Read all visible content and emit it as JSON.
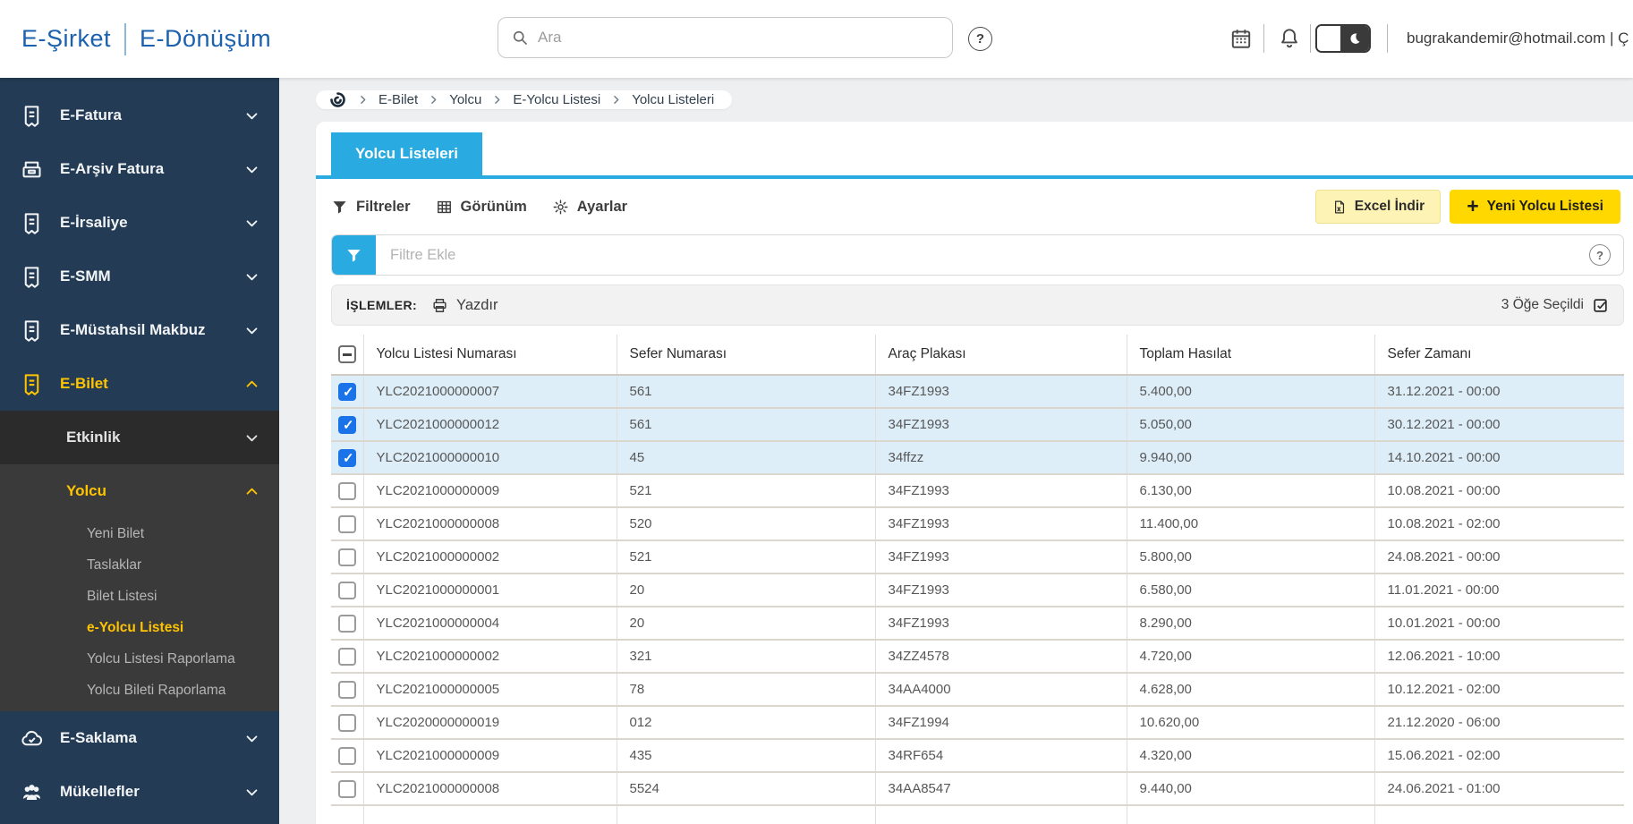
{
  "header": {
    "logo_primary": "E-Şirket",
    "logo_secondary": "E-Dönüşüm",
    "search_placeholder": "Ara",
    "help_glyph": "?",
    "user_email": "bugrakandemir@hotmail.com | Ç"
  },
  "sidebar": {
    "items": [
      {
        "label": "E-Fatura",
        "icon": "receipt",
        "active": false,
        "expanded": false
      },
      {
        "label": "E-Arşiv Fatura",
        "icon": "archive",
        "active": false,
        "expanded": false
      },
      {
        "label": "E-İrsaliye",
        "icon": "receipt",
        "active": false,
        "expanded": false
      },
      {
        "label": "E-SMM",
        "icon": "receipt",
        "active": false,
        "expanded": false
      },
      {
        "label": "E-Müstahsil Makbuz",
        "icon": "receipt",
        "active": false,
        "expanded": false
      },
      {
        "label": "E-Bilet",
        "icon": "receipt",
        "active": true,
        "expanded": true
      }
    ],
    "etkinlik_label": "Etkinlik",
    "yolcu_label": "Yolcu",
    "yolcu_links": [
      "Yeni Bilet",
      "Taslaklar",
      "Bilet Listesi",
      "e-Yolcu Listesi",
      "Yolcu Listesi Raporlama",
      "Yolcu Bileti Raporlama"
    ],
    "yolcu_active": "e-Yolcu Listesi",
    "bottom_items": [
      {
        "label": "E-Saklama",
        "icon": "cloud",
        "expanded": false
      },
      {
        "label": "Mükellefler",
        "icon": "people",
        "expanded": false
      }
    ]
  },
  "breadcrumb": {
    "items": [
      "E-Bilet",
      "Yolcu",
      "E-Yolcu Listesi",
      "Yolcu Listeleri"
    ]
  },
  "tab": {
    "label": "Yolcu Listeleri"
  },
  "toolbar": {
    "filters": "Filtreler",
    "view": "Görünüm",
    "settings": "Ayarlar",
    "excel": "Excel İndir",
    "new_list": "Yeni Yolcu Listesi"
  },
  "filterbar": {
    "placeholder": "Filtre Ekle",
    "help_glyph": "?"
  },
  "actions": {
    "label": "İŞLEMLER:",
    "print": "Yazdır",
    "selected": "3 Öğe Seçildi"
  },
  "table": {
    "columns": [
      {
        "key": "no",
        "label": "Yolcu Listesi Numarası"
      },
      {
        "key": "sefer",
        "label": "Sefer Numarası"
      },
      {
        "key": "plaka",
        "label": "Araç Plakası"
      },
      {
        "key": "hasilat",
        "label": "Toplam Hasılat"
      },
      {
        "key": "zaman",
        "label": "Sefer Zamanı"
      }
    ],
    "rows": [
      {
        "no": "YLC2021000000007",
        "sefer": "561",
        "plaka": "34FZ1993",
        "hasilat": "5.400,00",
        "zaman": "31.12.2021 - 00:00",
        "checked": true
      },
      {
        "no": "YLC2021000000012",
        "sefer": "561",
        "plaka": "34FZ1993",
        "hasilat": "5.050,00",
        "zaman": "30.12.2021 - 00:00",
        "checked": true
      },
      {
        "no": "YLC2021000000010",
        "sefer": "45",
        "plaka": "34ffzz",
        "hasilat": "9.940,00",
        "zaman": "14.10.2021 - 00:00",
        "checked": true
      },
      {
        "no": "YLC2021000000009",
        "sefer": "521",
        "plaka": "34FZ1993",
        "hasilat": "6.130,00",
        "zaman": "10.08.2021 - 00:00",
        "checked": false
      },
      {
        "no": "YLC2021000000008",
        "sefer": "520",
        "plaka": "34FZ1993",
        "hasilat": "11.400,00",
        "zaman": "10.08.2021 - 02:00",
        "checked": false
      },
      {
        "no": "YLC2021000000002",
        "sefer": "521",
        "plaka": "34FZ1993",
        "hasilat": "5.800,00",
        "zaman": "24.08.2021 - 00:00",
        "checked": false
      },
      {
        "no": "YLC2021000000001",
        "sefer": "20",
        "plaka": "34FZ1993",
        "hasilat": "6.580,00",
        "zaman": "11.01.2021 - 00:00",
        "checked": false
      },
      {
        "no": "YLC2021000000004",
        "sefer": "20",
        "plaka": "34FZ1993",
        "hasilat": "8.290,00",
        "zaman": "10.01.2021 - 00:00",
        "checked": false
      },
      {
        "no": "YLC2021000000002",
        "sefer": "321",
        "plaka": "34ZZ4578",
        "hasilat": "4.720,00",
        "zaman": "12.06.2021 - 10:00",
        "checked": false
      },
      {
        "no": "YLC2021000000005",
        "sefer": "78",
        "plaka": "34AA4000",
        "hasilat": "4.628,00",
        "zaman": "10.12.2021 - 02:00",
        "checked": false
      },
      {
        "no": "YLC2020000000019",
        "sefer": "012",
        "plaka": "34FZ1994",
        "hasilat": "10.620,00",
        "zaman": "21.12.2020 - 06:00",
        "checked": false
      },
      {
        "no": "YLC2021000000009",
        "sefer": "435",
        "plaka": "34RF654",
        "hasilat": "4.320,00",
        "zaman": "15.06.2021 - 02:00",
        "checked": false
      },
      {
        "no": "YLC2021000000008",
        "sefer": "5524",
        "plaka": "34AA8547",
        "hasilat": "9.440,00",
        "zaman": "24.06.2021 - 01:00",
        "checked": false
      }
    ]
  },
  "colors": {
    "accent": "#29abe2",
    "button_yellow": "#ffd800",
    "pale_yellow": "#fcf3b5",
    "sidebar_navy": "#233b54",
    "active_yellow": "#ffc400",
    "sel_row": "#ddeef9",
    "cb_blue": "#1a73e8",
    "logo_blue": "#1b61ae"
  }
}
